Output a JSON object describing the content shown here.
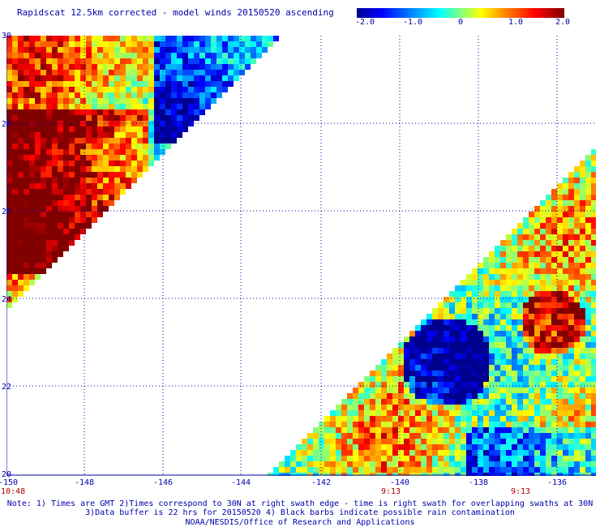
{
  "title": "Rapidscat 12.5km corrected - model winds 20150520 ascending",
  "colorbar": {
    "labels": [
      "-2.0",
      "-1.0",
      "0",
      "1.0",
      "2.0"
    ],
    "stops": [
      "#00008f",
      "#0000ff",
      "#0080ff",
      "#00ffff",
      "#80ff80",
      "#ffff00",
      "#ff8000",
      "#ff0000",
      "#800000"
    ]
  },
  "axes": {
    "x_ticks": [
      "-150",
      "-148",
      "-146",
      "-144",
      "-142",
      "-140",
      "-138",
      "-136"
    ],
    "y_ticks": [
      "30",
      "28",
      "26",
      "24",
      "22",
      "20"
    ]
  },
  "swath_times": [
    "10:48",
    "9:13",
    "9:13"
  ],
  "notes": [
    "Note: 1) Times are GMT 2)Times correspond to 30N at right swath edge - time is right swath for overlapping swaths at 30N",
    "3)Data buffer is 22 hrs for 20150520 4) Black barbs indicate possible rain contamination",
    "NOAA/NESDIS/Office of Research and Applications"
  ]
}
